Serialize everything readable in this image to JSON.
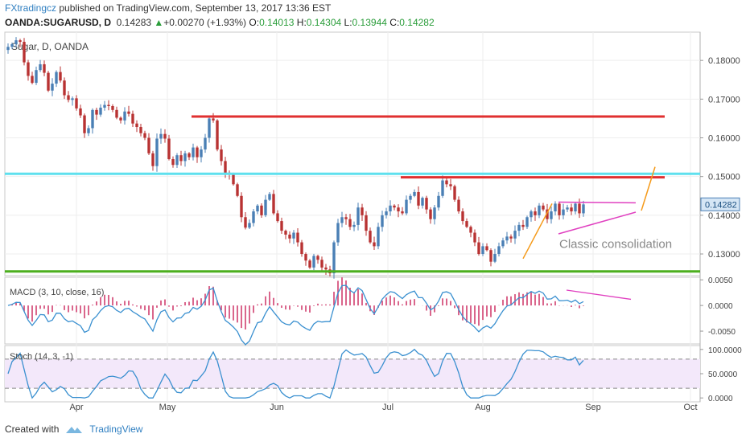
{
  "header": {
    "author": "FXtradingcz",
    "published_text": "published on TradingView.com, September 13, 2017 13:36 EST",
    "symbol": "OANDA:SUGARUSD, D",
    "last": "0.14283",
    "change": "+0.00270 (+1.93%)",
    "o_label": "O:",
    "o": "0.14013",
    "h_label": "H:",
    "h": "0.14304",
    "l_label": "L:",
    "l": "0.13944",
    "c_label": "C:",
    "c": "0.14282"
  },
  "footer": {
    "created_with": "Created with",
    "brand": "TradingView"
  },
  "colors": {
    "up": "#4a7fb5",
    "down": "#b83232",
    "red_line": "#e03030",
    "cyan_line": "#5ee0ee",
    "green_line": "#4caf1e",
    "pink": "#e040c0",
    "orange": "#f59a1a",
    "macd_line": "#3a90d0",
    "hist": "#d04070",
    "stoch": "#3a90d0",
    "stoch_band": "#f3e8fa"
  },
  "chart_data": [
    {
      "type": "candlestick",
      "title": "Sugar, D, OANDA",
      "price_axis": [
        "0.18000",
        "0.17000",
        "0.16000",
        "0.15000",
        "0.14000",
        "0.13000"
      ],
      "current_price": "0.14282",
      "ylim": [
        0.1244,
        0.1873
      ],
      "x_ticks": [
        "Apr",
        "May",
        "Jun",
        "Jul",
        "Aug",
        "Sep",
        "Oct"
      ],
      "annotation": "Classic consolidation",
      "levels": {
        "resistance_high": 0.1655,
        "cyan": 0.1507,
        "resistance_mid": 0.1498,
        "support": 0.1255
      },
      "closes": [
        0.1835,
        0.1842,
        0.1852,
        0.1848,
        0.1795,
        0.176,
        0.1742,
        0.1775,
        0.179,
        0.1768,
        0.1722,
        0.174,
        0.177,
        0.1748,
        0.171,
        0.1698,
        0.1702,
        0.1676,
        0.1658,
        0.1612,
        0.1625,
        0.1672,
        0.166,
        0.1678,
        0.1685,
        0.1682,
        0.1672,
        0.1652,
        0.1645,
        0.1668,
        0.1662,
        0.1637,
        0.1628,
        0.1612,
        0.16,
        0.156,
        0.1527,
        0.1598,
        0.161,
        0.1598,
        0.1545,
        0.153,
        0.1555,
        0.154,
        0.156,
        0.155,
        0.1575,
        0.155,
        0.157,
        0.16,
        0.165,
        0.1645,
        0.157,
        0.154,
        0.151,
        0.1505,
        0.148,
        0.145,
        0.1395,
        0.1368,
        0.138,
        0.141,
        0.1425,
        0.14,
        0.144,
        0.1455,
        0.1405,
        0.1385,
        0.136,
        0.135,
        0.134,
        0.1355,
        0.133,
        0.13,
        0.1283,
        0.1265,
        0.1295,
        0.1285,
        0.1265,
        0.126,
        0.125,
        0.133,
        0.138,
        0.1395,
        0.139,
        0.137,
        0.1375,
        0.142,
        0.14,
        0.136,
        0.133,
        0.132,
        0.137,
        0.14,
        0.141,
        0.1425,
        0.142,
        0.141,
        0.1405,
        0.144,
        0.145,
        0.146,
        0.1425,
        0.1445,
        0.1415,
        0.139,
        0.142,
        0.145,
        0.149,
        0.148,
        0.1475,
        0.144,
        0.141,
        0.1385,
        0.137,
        0.1355,
        0.133,
        0.13,
        0.132,
        0.131,
        0.128,
        0.13,
        0.132,
        0.1335,
        0.1345,
        0.134,
        0.136,
        0.1375,
        0.137,
        0.1395,
        0.141,
        0.14,
        0.1425,
        0.1415,
        0.139,
        0.141,
        0.143,
        0.14,
        0.1415,
        0.142,
        0.141,
        0.143,
        0.1405,
        0.1428
      ]
    },
    {
      "type": "line",
      "title": "MACD (3, 10, close, 16)",
      "ylim": [
        -0.0075,
        0.0055
      ],
      "y_ticks": [
        "0.0050",
        "0.0000",
        "-0.0050"
      ],
      "series": [
        {
          "name": "MACD"
        },
        {
          "name": "Histogram"
        }
      ]
    },
    {
      "type": "line",
      "title": "Stoch (14, 3, -1)",
      "ylim": [
        -8,
        108
      ],
      "y_ticks": [
        "100.0000",
        "50.0000",
        "0.0000"
      ],
      "bands": [
        20,
        80
      ]
    }
  ]
}
